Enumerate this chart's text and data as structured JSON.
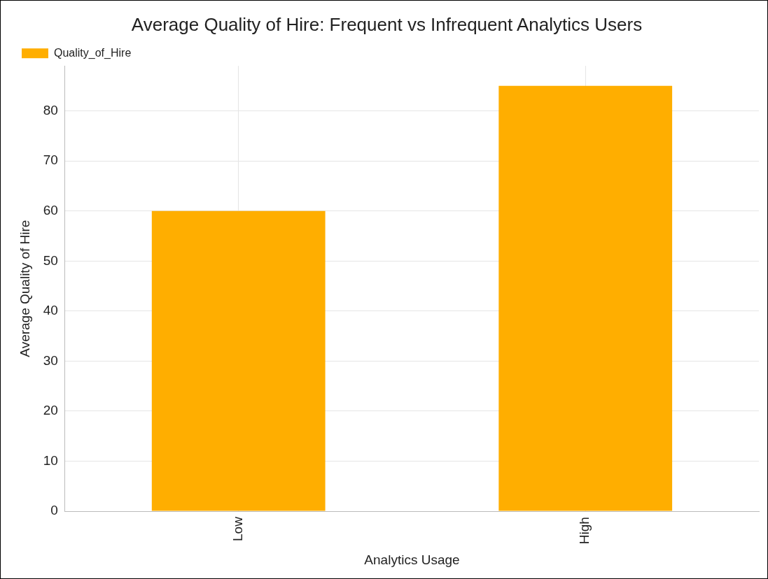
{
  "chart_data": {
    "type": "bar",
    "title": "Average Quality of Hire: Frequent vs Infrequent Analytics Users",
    "xlabel": "Analytics Usage",
    "ylabel": "Average Quality of Hire",
    "categories": [
      "Low",
      "High"
    ],
    "series": [
      {
        "name": "Quality_of_Hire",
        "color": "#ffae00",
        "values": [
          60,
          85
        ]
      }
    ],
    "ylim": [
      0,
      89
    ],
    "yticks": [
      0,
      10,
      20,
      30,
      40,
      50,
      60,
      70,
      80
    ],
    "grid": true,
    "legend": "top left"
  }
}
